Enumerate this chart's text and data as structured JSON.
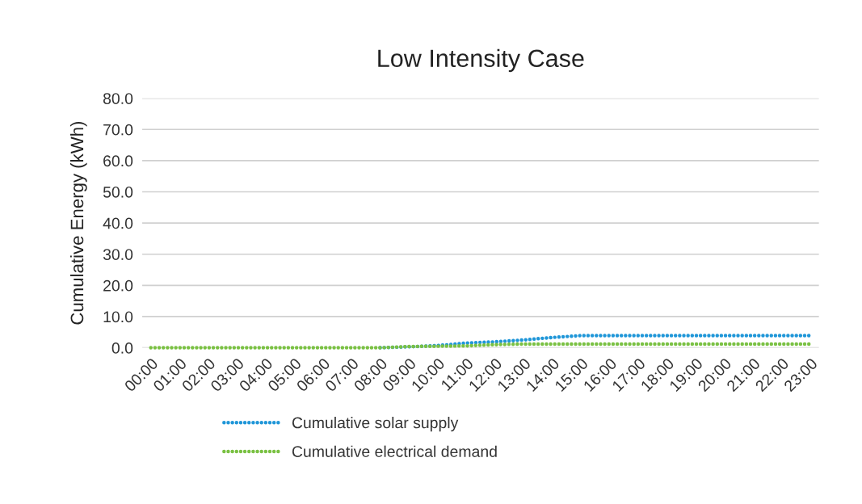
{
  "chart_data": {
    "type": "line",
    "title": "Low Intensity Case",
    "ylabel": "Cumulative Energy (kWh)",
    "categories": [
      "00:00",
      "01:00",
      "02:00",
      "03:00",
      "04:00",
      "05:00",
      "06:00",
      "07:00",
      "08:00",
      "09:00",
      "10:00",
      "11:00",
      "12:00",
      "13:00",
      "14:00",
      "15:00",
      "16:00",
      "17:00",
      "18:00",
      "19:00",
      "20:00",
      "21:00",
      "22:00",
      "23:00"
    ],
    "series": [
      {
        "name": "Cumulative solar supply",
        "color": "#1f96d8",
        "values": [
          null,
          null,
          null,
          null,
          null,
          null,
          null,
          null,
          0,
          0.3,
          0.7,
          1.5,
          1.9,
          2.5,
          3.3,
          3.9,
          3.9,
          3.9,
          3.9,
          3.9,
          3.9,
          3.9,
          3.9,
          3.9
        ]
      },
      {
        "name": "Cumulative electrical demand",
        "color": "#7ac143",
        "values": [
          0,
          0,
          0,
          0,
          0,
          0,
          0,
          0,
          0,
          0.4,
          0.5,
          0.6,
          1.0,
          1.2,
          1.2,
          1.2,
          1.2,
          1.2,
          1.2,
          1.2,
          1.2,
          1.2,
          1.2,
          1.2
        ]
      }
    ],
    "ylim": [
      0,
      80
    ],
    "yticks": [
      {
        "value": 0,
        "label": "0.0"
      },
      {
        "value": 10,
        "label": "10.0"
      },
      {
        "value": 20,
        "label": "20.0"
      },
      {
        "value": 30,
        "label": "30.0"
      },
      {
        "value": 40,
        "label": "40.0"
      },
      {
        "value": 50,
        "label": "50.0"
      },
      {
        "value": 60,
        "label": "60.0"
      },
      {
        "value": 70,
        "label": "70.0"
      },
      {
        "value": 80,
        "label": "80.0"
      }
    ],
    "grid": "y",
    "legend": "bottom",
    "line_style": "dotted",
    "marker": "none"
  }
}
